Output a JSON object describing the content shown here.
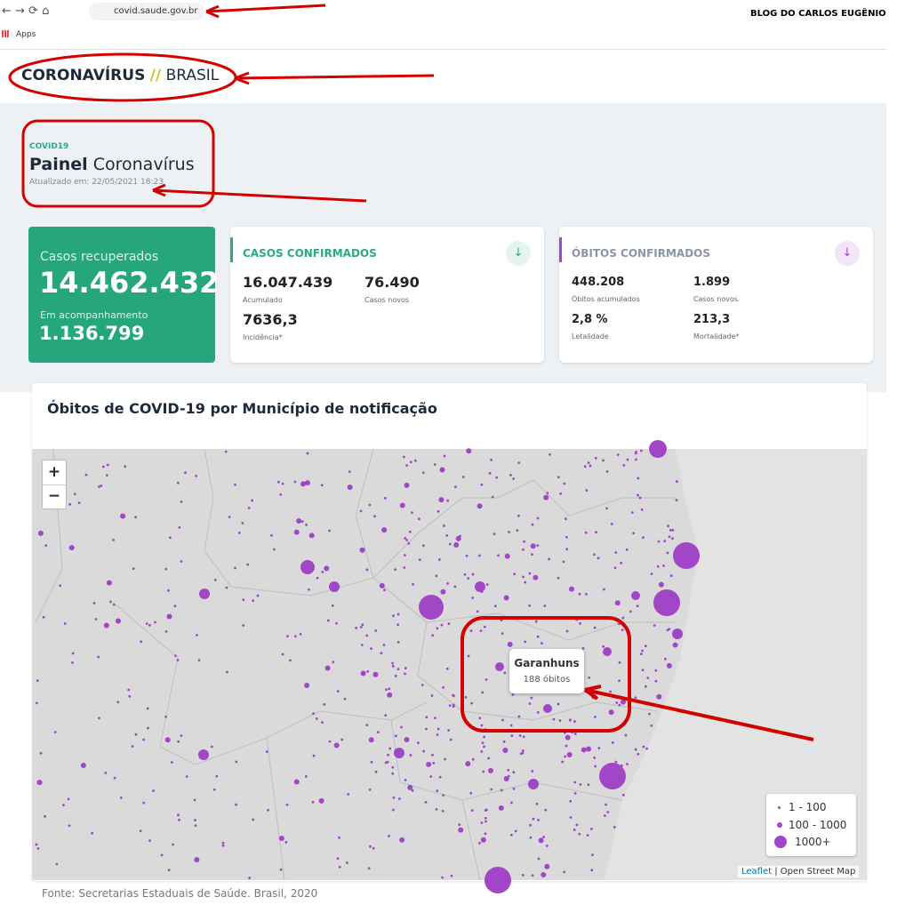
{
  "browser": {
    "url": "covid.saude.gov.br",
    "blog": "BLOG DO CARLOS EUGÊNIO",
    "apps": "Apps"
  },
  "header": {
    "logo_main": "CORONAVÍRUS",
    "logo_sep": "//",
    "logo_country": "BRASIL"
  },
  "panel": {
    "tag": "COVID19",
    "title_bold": "Painel",
    "title_rest": "Coronavírus",
    "updated": "Atualizado em: 22/05/2021 18:23"
  },
  "recovered": {
    "label": "Casos recuperados",
    "value": "14.462.432",
    "follow_label": "Em acompanhamento",
    "follow_value": "1.136.799"
  },
  "cases": {
    "title": "CASOS CONFIRMADOS",
    "items": [
      {
        "value": "16.047.439",
        "label": "Acumulado"
      },
      {
        "value": "76.490",
        "label": "Casos novos"
      },
      {
        "value": "7636,3",
        "label": "Incidência*"
      }
    ]
  },
  "deaths": {
    "title": "ÓBITOS CONFIRMADOS",
    "items": [
      {
        "value": "448.208",
        "label": "Óbitos acumulados"
      },
      {
        "value": "1.899",
        "label": "Casos novos"
      },
      {
        "value": "2,8 %",
        "label": "Letalidade"
      },
      {
        "value": "213,3",
        "label": "Mortalidade*"
      }
    ]
  },
  "map": {
    "title": "Óbitos de COVID-19 por Município de notificação",
    "zoom_in": "+",
    "zoom_out": "−",
    "tooltip": {
      "name": "Garanhuns",
      "value": "188 óbitos"
    },
    "legend": [
      "1 - 100",
      "100 - 1000",
      "1000+"
    ],
    "attribution_link": "Leaflet",
    "attribution_rest": "| Open Street Map"
  },
  "source": "Fonte: Secretarias Estaduais de Saúde. Brasil, 2020"
}
